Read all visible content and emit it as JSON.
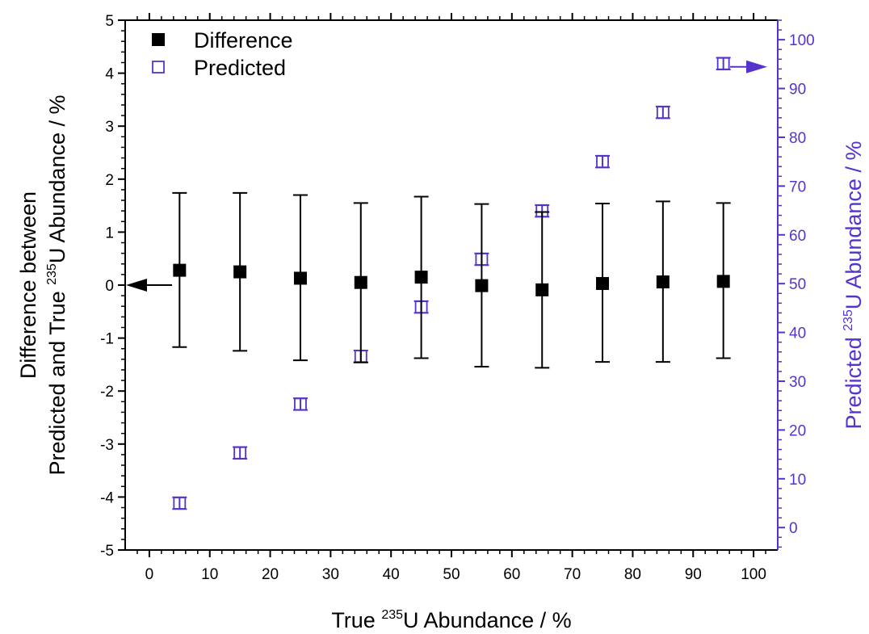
{
  "chart_data": {
    "type": "scatter",
    "x": [
      5,
      15,
      25,
      35,
      45,
      55,
      65,
      75,
      85,
      95
    ],
    "xlim": [
      -4,
      104
    ],
    "xticks": [
      0,
      10,
      20,
      30,
      40,
      50,
      60,
      70,
      80,
      90,
      100
    ],
    "xlabel_parts": [
      "True ",
      "235",
      "U Abundance / %"
    ],
    "y_left": {
      "lim": [
        -5,
        5
      ],
      "ticks": [
        -5,
        -4,
        -3,
        -2,
        -1,
        0,
        1,
        2,
        3,
        4,
        5
      ],
      "label_line1": "Difference between",
      "label_line2_parts": [
        "Predicted and True ",
        "235",
        "U Abundance / %"
      ],
      "color": "#000000"
    },
    "y_right": {
      "lim": [
        -4.6,
        104
      ],
      "ticks": [
        0,
        10,
        20,
        30,
        40,
        50,
        60,
        70,
        80,
        90,
        100
      ],
      "label_parts": [
        "Predicted ",
        "235",
        "U Abundance / %"
      ],
      "color": "#5533cc"
    },
    "series": [
      {
        "name": "Difference",
        "axis": "left",
        "marker": "filled-square",
        "color": "#000000",
        "values": [
          0.28,
          0.25,
          0.13,
          0.05,
          0.15,
          -0.01,
          -0.09,
          0.03,
          0.06,
          0.07
        ],
        "err_upper": [
          1.74,
          1.74,
          1.7,
          1.55,
          1.67,
          1.53,
          1.38,
          1.54,
          1.58,
          1.55
        ],
        "err_lower": [
          -1.17,
          -1.24,
          -1.42,
          -1.46,
          -1.38,
          -1.54,
          -1.56,
          -1.45,
          -1.45,
          -1.38
        ]
      },
      {
        "name": "Predicted",
        "axis": "right",
        "marker": "open-square",
        "color": "#5533cc",
        "values": [
          5.0,
          15.3,
          25.3,
          35.1,
          45.2,
          55.0,
          64.9,
          75.0,
          85.1,
          95.1
        ],
        "err": [
          1.2,
          1.2,
          1.2,
          1.2,
          1.2,
          1.2,
          1.2,
          1.2,
          1.2,
          1.2
        ]
      }
    ],
    "legend": {
      "position": "top-left",
      "entries": [
        "Difference",
        "Predicted"
      ]
    }
  }
}
